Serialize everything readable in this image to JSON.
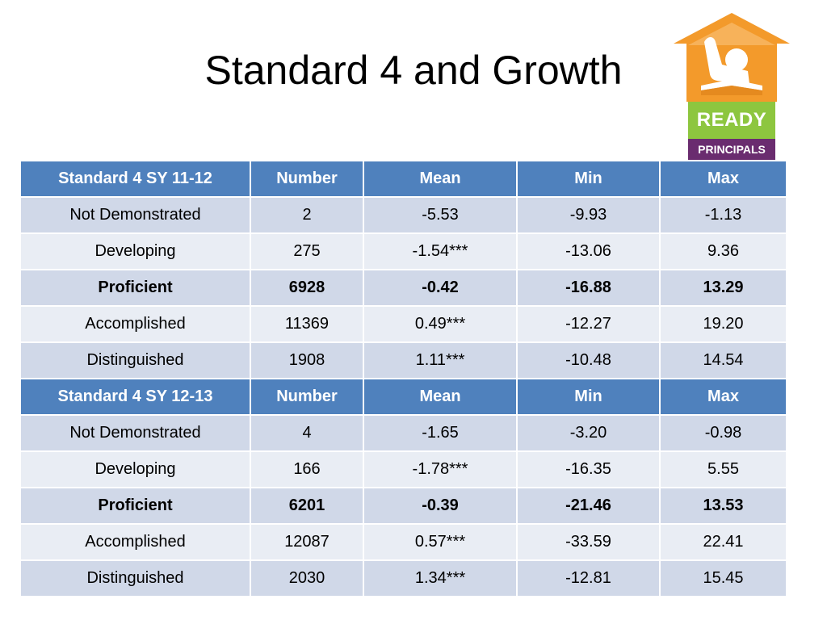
{
  "title": "Standard 4 and Growth",
  "logo": {
    "ready": "READY",
    "principals": "PRINCIPALS"
  },
  "colors": {
    "header": "#4f81bd",
    "row_dark": "#d0d8e8",
    "row_light": "#e9edf4",
    "logo_orange": "#f39a2b",
    "logo_green": "#8dc63f",
    "logo_purple": "#6a2c6f"
  },
  "sections": [
    {
      "header": [
        "Standard 4 SY 11-12",
        "Number",
        "Mean",
        "Min",
        "Max"
      ],
      "rows": [
        {
          "cells": [
            "Not Demonstrated",
            "2",
            "-5.53",
            "-9.93",
            "-1.13"
          ],
          "bold": false
        },
        {
          "cells": [
            "Developing",
            "275",
            "-1.54***",
            "-13.06",
            "9.36"
          ],
          "bold": false
        },
        {
          "cells": [
            "Proficient",
            "6928",
            "-0.42",
            "-16.88",
            "13.29"
          ],
          "bold": true
        },
        {
          "cells": [
            "Accomplished",
            "11369",
            "0.49***",
            "-12.27",
            "19.20"
          ],
          "bold": false
        },
        {
          "cells": [
            "Distinguished",
            "1908",
            "1.11***",
            "-10.48",
            "14.54"
          ],
          "bold": false
        }
      ]
    },
    {
      "header": [
        "Standard 4 SY 12-13",
        "Number",
        "Mean",
        "Min",
        "Max"
      ],
      "rows": [
        {
          "cells": [
            "Not Demonstrated",
            "4",
            "-1.65",
            "-3.20",
            "-0.98"
          ],
          "bold": false
        },
        {
          "cells": [
            "Developing",
            "166",
            "-1.78***",
            "-16.35",
            "5.55"
          ],
          "bold": false
        },
        {
          "cells": [
            "Proficient",
            "6201",
            "-0.39",
            "-21.46",
            "13.53"
          ],
          "bold": true
        },
        {
          "cells": [
            "Accomplished",
            "12087",
            "0.57***",
            "-33.59",
            "22.41"
          ],
          "bold": false
        },
        {
          "cells": [
            "Distinguished",
            "2030",
            "1.34***",
            "-12.81",
            "15.45"
          ],
          "bold": false
        }
      ]
    }
  ]
}
